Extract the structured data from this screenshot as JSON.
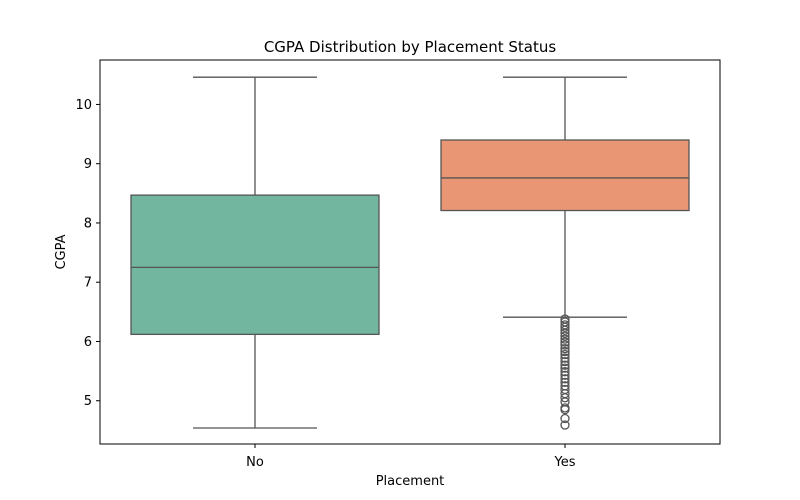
{
  "chart_data": {
    "type": "box",
    "title": "CGPA Distribution by Placement Status",
    "xlabel": "Placement",
    "ylabel": "CGPA",
    "categories": [
      "No",
      "Yes"
    ],
    "ylim": [
      4.27,
      10.75
    ],
    "yticks": [
      5,
      6,
      7,
      8,
      9,
      10
    ],
    "grid": false,
    "series": [
      {
        "category": "No",
        "color": "#73b6a0",
        "whisker_low": 4.54,
        "q1": 6.12,
        "median": 7.25,
        "q3": 8.47,
        "whisker_high": 10.46,
        "outliers": []
      },
      {
        "category": "Yes",
        "color": "#e99674",
        "whisker_low": 6.41,
        "q1": 8.21,
        "median": 8.76,
        "q3": 9.4,
        "whisker_high": 10.46,
        "outliers": [
          6.38,
          6.33,
          6.28,
          6.24,
          6.19,
          6.14,
          6.09,
          6.04,
          5.99,
          5.94,
          5.88,
          5.83,
          5.78,
          5.72,
          5.66,
          5.6,
          5.55,
          5.49,
          5.43,
          5.37,
          5.31,
          5.25,
          5.19,
          5.12,
          5.05,
          4.98,
          4.88,
          4.85,
          4.7,
          4.59
        ]
      }
    ]
  }
}
